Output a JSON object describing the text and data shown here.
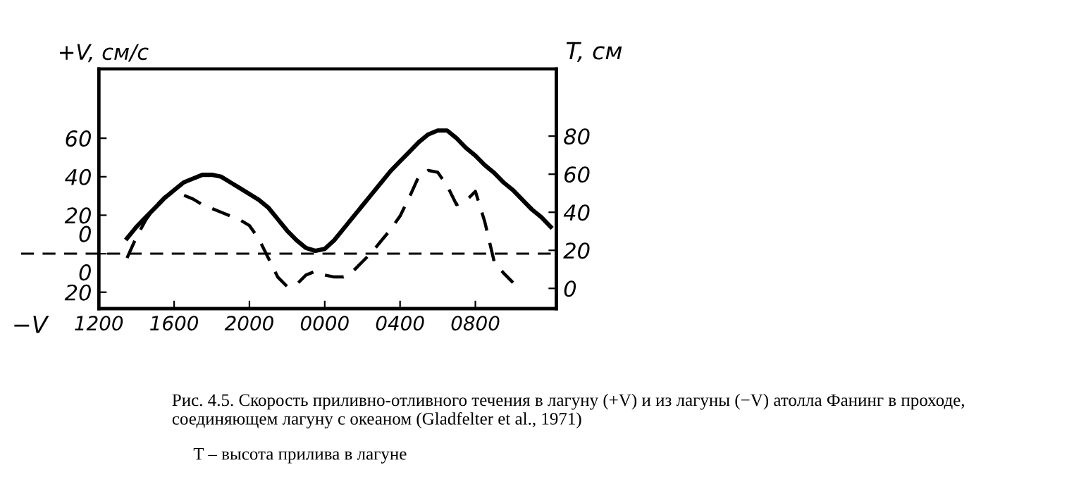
{
  "chart_data": {
    "type": "line",
    "ylabel": "+V, см/с",
    "y2label": "T, см",
    "categories": [
      "1200",
      null,
      null,
      null,
      null,
      null,
      null,
      null,
      "1600",
      null,
      null,
      null,
      null,
      null,
      null,
      null,
      "2000",
      null,
      null,
      null,
      null,
      null,
      null,
      null,
      "0000",
      null,
      null,
      null,
      null,
      null,
      null,
      null,
      "0400",
      null,
      null,
      null,
      null,
      null,
      null,
      null,
      "0800",
      null,
      null,
      null,
      null,
      null,
      null,
      null,
      null
    ],
    "ylim": [
      -28.5,
      96
    ],
    "yticks": [
      {
        "value": -20,
        "label": "20"
      },
      {
        "value": 0,
        "label": "0\n\n0"
      },
      20,
      40,
      60
    ],
    "y2lim": [
      -10.6,
      115.3
    ],
    "y2ticks": [
      0,
      20,
      40,
      60,
      80
    ],
    "series": [
      {
        "color": "#000000",
        "line_style": "solid",
        "values": [
          null,
          null,
          null,
          8,
          14,
          19,
          24,
          29,
          33,
          37,
          39,
          41,
          41,
          40,
          37,
          34,
          31,
          28,
          24,
          18,
          12,
          7,
          3,
          1.5,
          2.5,
          7,
          13,
          19,
          25,
          31,
          37,
          43,
          48,
          53,
          58,
          62,
          64,
          64,
          60,
          55,
          51,
          46,
          42,
          37,
          33,
          28,
          23,
          19,
          14
        ]
      },
      {
        "color": "#000000",
        "line_style": "dashed",
        "axis": "y2",
        "values": [
          null,
          null,
          null,
          16,
          27,
          36,
          43,
          48,
          51,
          49,
          47,
          44,
          42,
          40,
          38,
          36,
          33,
          26,
          16,
          6,
          1,
          2,
          7,
          9,
          7,
          6,
          6,
          9,
          14,
          19,
          25,
          31,
          38,
          48,
          59,
          62,
          61,
          54,
          44,
          46,
          51,
          35,
          14,
          8,
          3,
          null,
          null,
          null,
          null
        ]
      }
    ],
    "ref_lines": [
      {
        "axis": "y",
        "value": 0,
        "color": "#000000",
        "line_style": "dashed"
      }
    ],
    "annotations": [
      "−V",
      "Рис. 4.5. Скорость приливно-отливного течения в лагуну (+V) и из лагуны (−V) атолла Фанинг в проходе, соединяющем лагуну с океаном (Gladfelter et al., 1971)",
      "T – высота прилива в лагуне"
    ]
  }
}
